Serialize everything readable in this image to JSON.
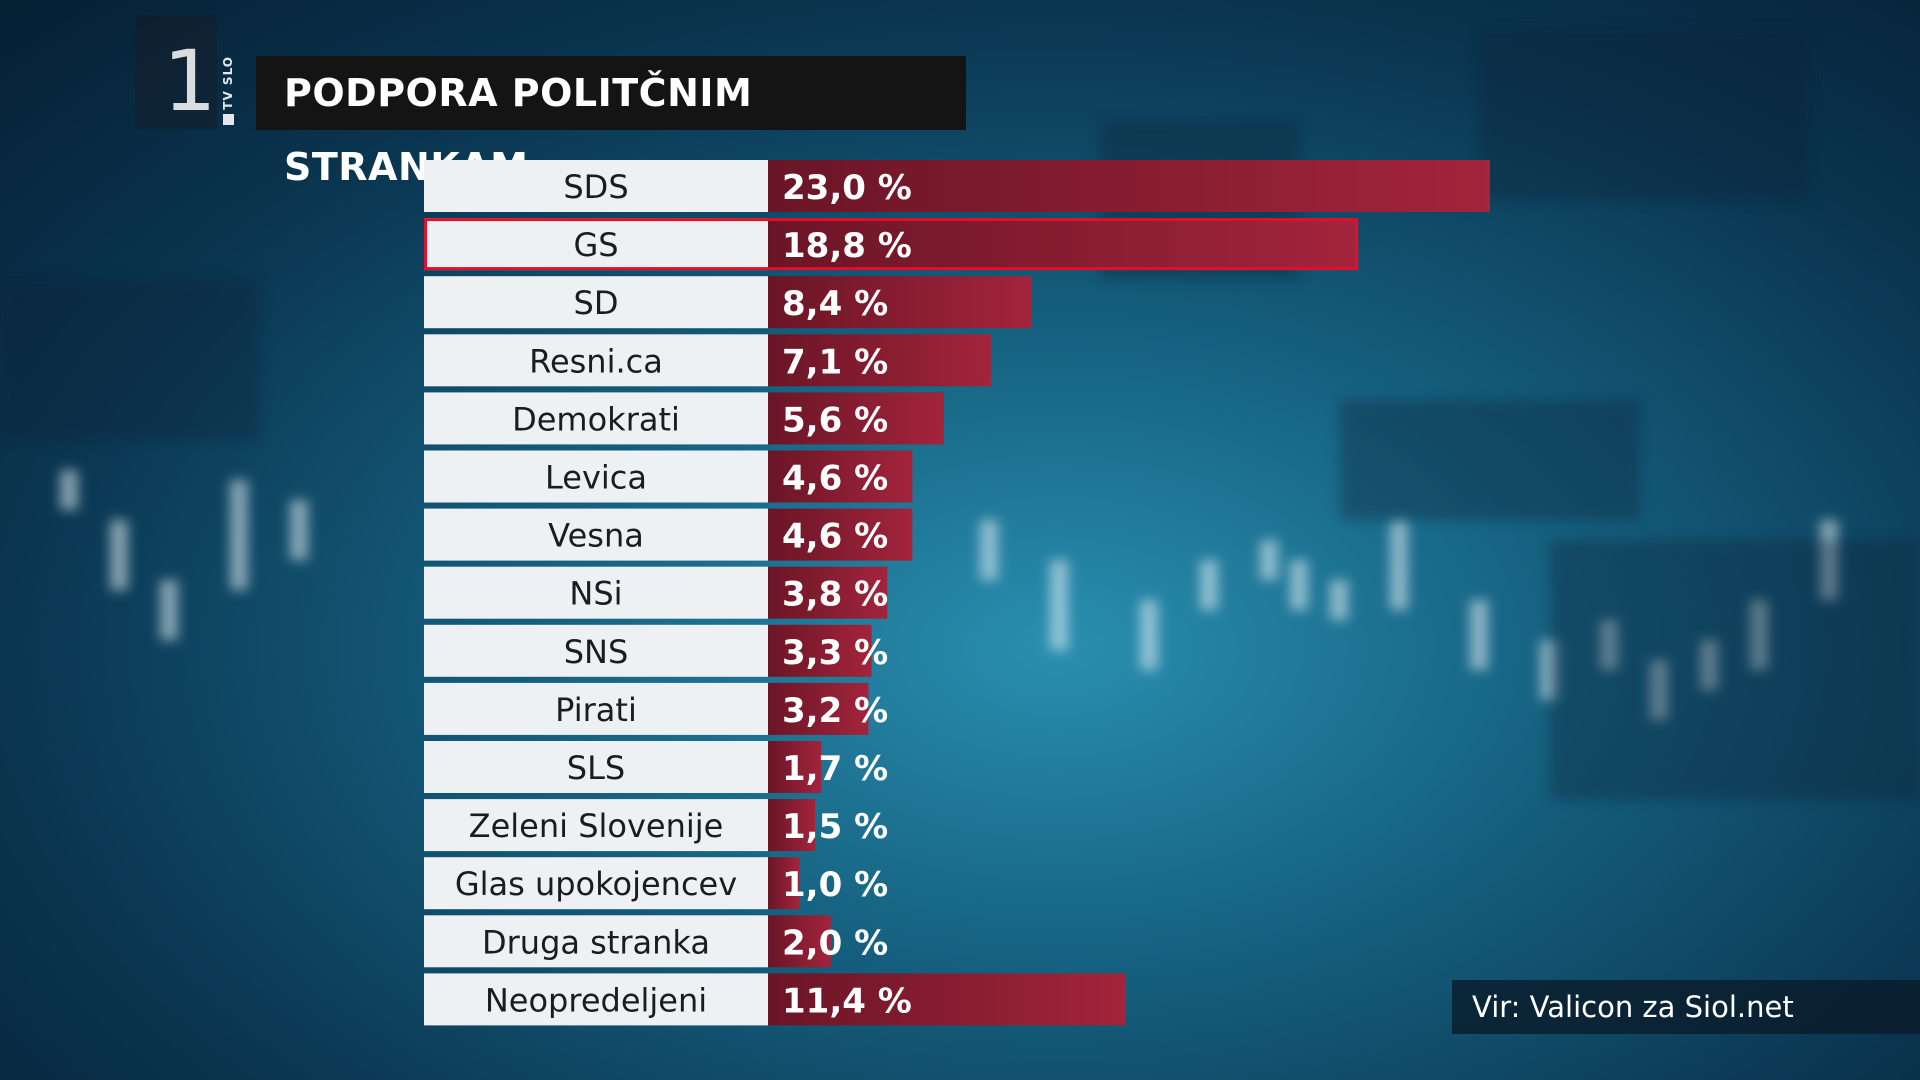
{
  "broadcaster": {
    "channel_number": "1",
    "channel_label": "TV SLO"
  },
  "title": "PODPORA POLITČNIM STRANKAM",
  "source": "Vir: Valicon za Siol.net",
  "colors": {
    "bar_dark": "#6a1526",
    "bar_light": "#a3243c",
    "label_bg": "#eef1f3",
    "highlight_border": "#e0102a",
    "title_bg": "#141414"
  },
  "chart_data": {
    "type": "bar",
    "orientation": "horizontal",
    "categories": [
      "SDS",
      "GS",
      "SD",
      "Resni.ca",
      "Demokrati",
      "Levica",
      "Vesna",
      "NSi",
      "SNS",
      "Pirati",
      "SLS",
      "Zeleni Slovenije",
      "Glas upokojencev",
      "Druga stranka",
      "Neopredeljeni"
    ],
    "values": [
      23.0,
      18.8,
      8.4,
      7.1,
      5.6,
      4.6,
      4.6,
      3.8,
      3.3,
      3.2,
      1.7,
      1.5,
      1.0,
      2.0,
      11.4
    ],
    "value_labels": [
      "23,0 %",
      "18,8 %",
      "8,4 %",
      "7,1 %",
      "5,6 %",
      "4,6 %",
      "4,6 %",
      "3,8 %",
      "3,3 %",
      "3,2 %",
      "1,7 %",
      "1,5 %",
      "1,0 %",
      "2,0 %",
      "11,4 %"
    ],
    "highlighted": "GS",
    "unit": "%"
  }
}
